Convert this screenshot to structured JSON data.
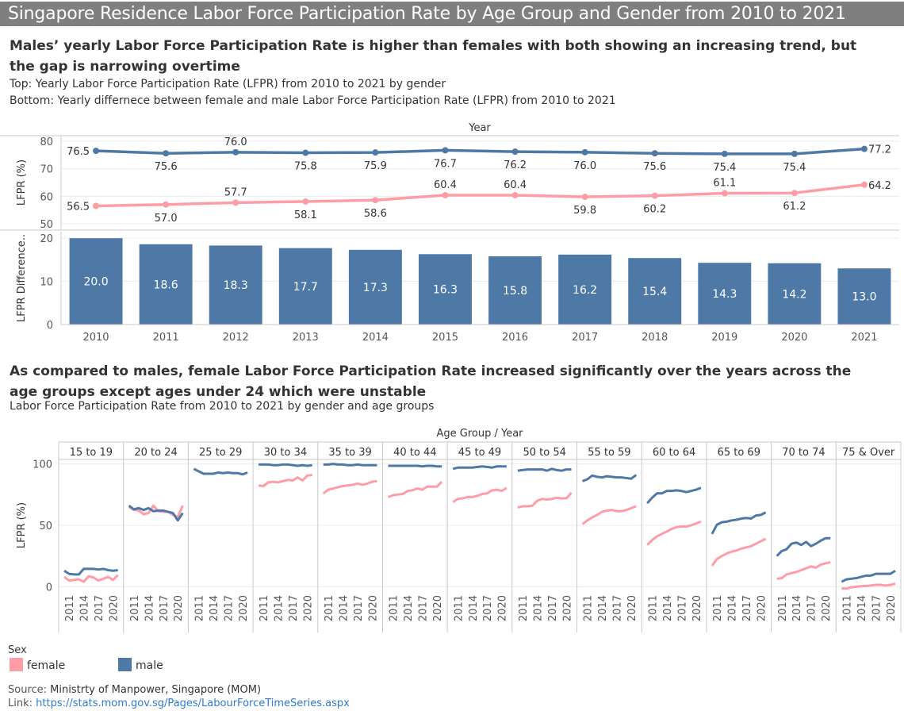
{
  "banner": {
    "title": "Singapore Residence Labor Force Participation Rate by Age Group and Gender from 2010 to 2021"
  },
  "section1": {
    "headline": "Males’ yearly Labor Force Participation Rate is higher than females with both showing an increasing trend, but the gap is narrowing overtime",
    "sub1": "Top: Yearly Labor Force Participation Rate (LFPR) from 2010 to 2021 by gender",
    "sub2": "Bottom: Yearly differnece between female and male Labor Force Participation Rate (LFPR) from 2010 to 2021"
  },
  "section2": {
    "headline": "As compared to males, female Labor Force Participation Rate increased significantly over the years across the age groups except ages under 24 which were unstable",
    "sub1": "Labor Force Participation Rate from 2010 to 2021 by gender and age groups"
  },
  "legend": {
    "title": "Sex",
    "items": [
      {
        "label": "female",
        "color": "#ff9da7"
      },
      {
        "label": "male",
        "color": "#4e79a7"
      }
    ]
  },
  "source": {
    "label": "Source:",
    "text": "Ministrty of Manpower, Singapore (MOM)",
    "link_label": "Link:",
    "link": "https://stats.mom.gov.sg/Pages/LabourForceTimeSeries.aspx"
  },
  "colors": {
    "male": "#4e79a7",
    "female": "#ff9da7"
  },
  "chart_data": [
    {
      "type": "line",
      "header": "Year",
      "ylabel": "LFPR (%)",
      "ylim": [
        48,
        82
      ],
      "yticks": [
        50,
        60,
        70,
        80
      ],
      "x": [
        2010,
        2011,
        2012,
        2013,
        2014,
        2015,
        2016,
        2017,
        2018,
        2019,
        2020,
        2021
      ],
      "series": [
        {
          "name": "male",
          "values": [
            76.5,
            75.6,
            76.0,
            75.8,
            75.9,
            76.7,
            76.2,
            76.0,
            75.6,
            75.4,
            75.4,
            77.2
          ],
          "labels": [
            "76.5",
            "75.6",
            "76.0",
            "75.8",
            "75.9",
            "76.7",
            "76.2",
            "76.0",
            "75.6",
            "75.4",
            "75.4",
            "77.2"
          ],
          "label_pos": [
            "side",
            "below",
            "above",
            "below",
            "below",
            "below",
            "below",
            "below",
            "below",
            "below",
            "below",
            "side"
          ]
        },
        {
          "name": "female",
          "values": [
            56.5,
            57.0,
            57.7,
            58.1,
            58.6,
            60.4,
            60.4,
            59.8,
            60.2,
            61.1,
            61.2,
            64.2
          ],
          "labels": [
            "56.5",
            "57.0",
            "57.7",
            "58.1",
            "58.6",
            "60.4",
            "60.4",
            "59.8",
            "60.2",
            "61.1",
            "61.2",
            "64.2"
          ],
          "label_pos": [
            "side",
            "below",
            "above",
            "below",
            "below",
            "above",
            "above",
            "below",
            "below",
            "above",
            "below",
            "side"
          ]
        }
      ],
      "grid": true
    },
    {
      "type": "bar",
      "ylabel": "LFPR Difference..",
      "ylim": [
        0,
        21.5
      ],
      "yticks": [
        0,
        10,
        20
      ],
      "categories": [
        "2010",
        "2011",
        "2012",
        "2013",
        "2014",
        "2015",
        "2016",
        "2017",
        "2018",
        "2019",
        "2020",
        "2021"
      ],
      "values": [
        20.0,
        18.6,
        18.3,
        17.7,
        17.3,
        16.3,
        15.8,
        16.2,
        15.4,
        14.3,
        14.2,
        13.0
      ],
      "labels": [
        "20.0",
        "18.6",
        "18.3",
        "17.7",
        "17.3",
        "16.3",
        "15.8",
        "16.2",
        "15.4",
        "14.3",
        "14.2",
        "13.0"
      ],
      "color": "#4e79a7",
      "grid": true
    },
    {
      "type": "line",
      "header": "Age Group  /  Year",
      "ylabel": "LFPR (%)",
      "ylim": [
        -3,
        103
      ],
      "yticks": [
        0,
        50,
        100
      ],
      "years": [
        2010,
        2011,
        2012,
        2013,
        2014,
        2015,
        2016,
        2017,
        2018,
        2019,
        2020,
        2021
      ],
      "year_ticks": [
        "2011",
        "2014",
        "2017",
        "2020"
      ],
      "panels": [
        {
          "group": "15 to 19",
          "male": [
            13,
            10.5,
            10,
            10,
            14.5,
            14.5,
            14.5,
            14,
            14.5,
            13.5,
            13,
            13.5
          ],
          "female": [
            8,
            5,
            5.5,
            6,
            4,
            8.5,
            7.5,
            5,
            6.5,
            8,
            5.5,
            9.5
          ]
        },
        {
          "group": "20 to 24",
          "male": [
            66,
            63,
            64,
            62.5,
            64,
            61.5,
            62,
            62,
            61,
            60,
            54,
            60
          ],
          "female": [
            65,
            62.5,
            62,
            59,
            60,
            66,
            61.5,
            61,
            61,
            58.5,
            57,
            66
          ]
        },
        {
          "group": "25 to 29",
          "male": [
            96,
            94,
            92,
            92,
            92,
            93,
            92.5,
            93,
            92.5,
            92.5,
            91.5,
            93
          ]
        },
        {
          "group": "30 to 34",
          "male": [
            99.5,
            99.5,
            99.5,
            99,
            99,
            99.5,
            99.5,
            99,
            98.5,
            99,
            98.5,
            99
          ],
          "female": [
            82.5,
            82,
            85,
            85.5,
            85,
            86,
            87,
            86.5,
            89,
            86.5,
            90.5,
            91
          ]
        },
        {
          "group": "35 to 39",
          "male": [
            99.5,
            99.5,
            100,
            99.5,
            99.5,
            99,
            99,
            99.5,
            99,
            99,
            99,
            99
          ],
          "female": [
            76,
            79,
            80,
            81,
            82,
            82.5,
            83,
            84,
            83,
            84,
            85.5,
            86
          ]
        },
        {
          "group": "40 to 44",
          "male": [
            98.5,
            98.5,
            98.5,
            98.5,
            98.5,
            98.5,
            98.5,
            98,
            98.5,
            98.5,
            98,
            98
          ],
          "female": [
            73,
            74.5,
            75,
            75.5,
            78,
            78.5,
            80,
            79,
            81.5,
            81.5,
            81.5,
            85.5
          ]
        },
        {
          "group": "45 to 49",
          "male": [
            96,
            97,
            97,
            97,
            97,
            97.5,
            98,
            97.5,
            97,
            98,
            98,
            98
          ],
          "female": [
            69,
            71.5,
            72,
            73,
            73,
            74,
            75.5,
            76,
            78.5,
            79,
            78,
            80.5
          ]
        },
        {
          "group": "50 to 54",
          "male": [
            94.5,
            95,
            95.5,
            95.5,
            95.5,
            95.5,
            94.5,
            96,
            95,
            94.5,
            95.5,
            95.5
          ],
          "female": [
            64.5,
            65.5,
            65.5,
            66,
            70,
            71.5,
            71,
            71.5,
            72.5,
            72,
            72,
            76.5
          ]
        },
        {
          "group": "55 to 59",
          "male": [
            86,
            87.5,
            90.5,
            89.5,
            89,
            90,
            89.5,
            89,
            89,
            88.5,
            88,
            91
          ],
          "female": [
            51,
            54,
            56.5,
            58.5,
            61,
            62,
            62.5,
            61.5,
            61.5,
            62.5,
            64,
            65.5
          ]
        },
        {
          "group": "60 to 64",
          "male": [
            68,
            72.5,
            76,
            76,
            78,
            78,
            78.5,
            78,
            77,
            78,
            79,
            80.5
          ],
          "female": [
            34,
            38,
            41,
            43,
            45,
            47,
            48.5,
            49,
            49,
            50,
            51.5,
            53
          ]
        },
        {
          "group": "65 to 69",
          "male": [
            43,
            50.5,
            52.5,
            53,
            54,
            54.5,
            55.5,
            56,
            55.5,
            58,
            58.5,
            60.5
          ],
          "female": [
            17,
            22.5,
            25,
            27,
            28.5,
            29.5,
            31,
            32,
            33,
            35,
            37,
            39
          ]
        },
        {
          "group": "70 to 74",
          "male": [
            25,
            29,
            30.5,
            35,
            36,
            34,
            36.5,
            33,
            35,
            37.5,
            39.5,
            39.5
          ],
          "female": [
            6.5,
            7,
            10,
            11,
            12,
            13.5,
            15,
            16.5,
            15.5,
            18,
            19,
            20
          ]
        },
        {
          "group": "75 & Over",
          "male": [
            4,
            6,
            6.5,
            7,
            8,
            9,
            9,
            10.5,
            10.5,
            10.5,
            10.5,
            13
          ],
          "female": [
            -1.5,
            -1.5,
            -0.5,
            0,
            0.5,
            0.5,
            1,
            1.5,
            1.5,
            1,
            1.5,
            2.5
          ]
        }
      ],
      "grid": true
    }
  ]
}
